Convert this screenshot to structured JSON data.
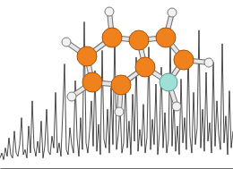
{
  "chart_data": {
    "type": "line",
    "color": "#000000",
    "tick_labels": false,
    "grid": false,
    "xlim": [
      0,
      130
    ],
    "ylim": [
      0,
      100
    ],
    "values": [
      6,
      9,
      5,
      12,
      7,
      18,
      8,
      6,
      22,
      9,
      7,
      14,
      30,
      8,
      11,
      6,
      25,
      9,
      40,
      12,
      7,
      16,
      9,
      28,
      6,
      13,
      35,
      10,
      8,
      19,
      12,
      45,
      9,
      15,
      7,
      33,
      62,
      11,
      8,
      24,
      14,
      9,
      52,
      18,
      7,
      30,
      11,
      87,
      15,
      9,
      22,
      40,
      13,
      58,
      10,
      26,
      8,
      70,
      17,
      12,
      35,
      9,
      48,
      14,
      80,
      11,
      20,
      37,
      9,
      15,
      55,
      12,
      28,
      8,
      44,
      16,
      66,
      10,
      23,
      13,
      38,
      9,
      18,
      72,
      11,
      29,
      14,
      50,
      8,
      21,
      60,
      12,
      33,
      9,
      17,
      76,
      13,
      41,
      10,
      25,
      8,
      53,
      15,
      30,
      11,
      68,
      19,
      9,
      45,
      14,
      24,
      82,
      12,
      35,
      10,
      57,
      16,
      27,
      9,
      63,
      13,
      40,
      20,
      11,
      74,
      15,
      31,
      8,
      46,
      12,
      22
    ]
  }
}
